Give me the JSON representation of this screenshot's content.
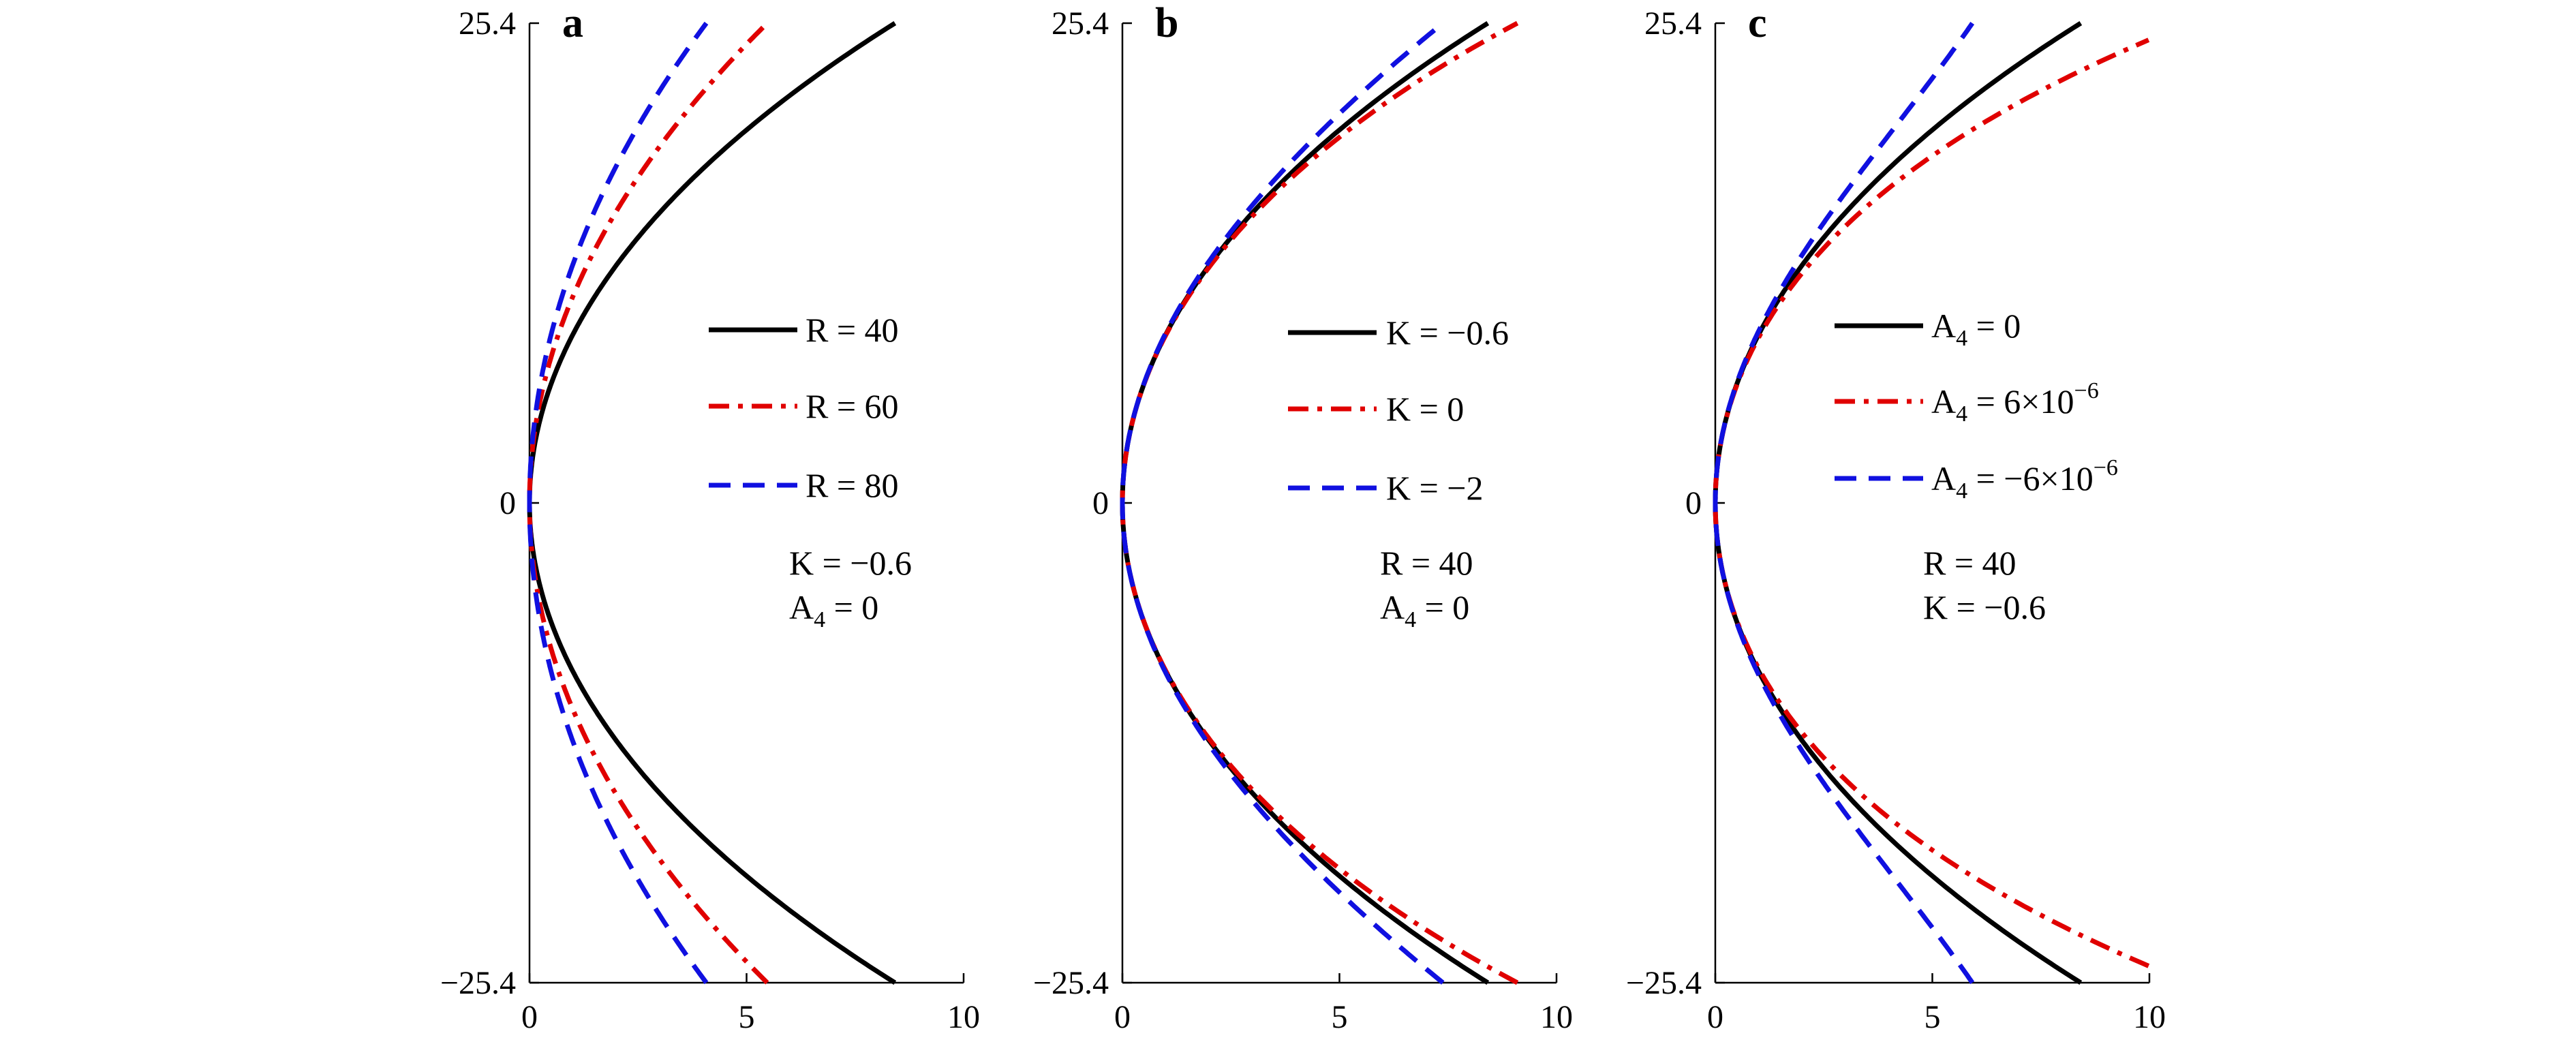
{
  "chart_data": [
    {
      "panel": "a",
      "type": "line",
      "xlim": [
        0,
        10
      ],
      "ylim": [
        -25.4,
        25.4
      ],
      "x_ticks": [
        "0",
        "5",
        "10"
      ],
      "y_ticks": [
        "25.4",
        "0",
        "−25.4"
      ],
      "series": [
        {
          "name": "R = 40",
          "color": "#000000",
          "style": "solid",
          "R": 40,
          "K": -0.6,
          "A4": 0
        },
        {
          "name": "R = 60",
          "color": "#e00000",
          "style": "dashdot",
          "R": 60,
          "K": -0.6,
          "A4": 0
        },
        {
          "name": "R = 80",
          "color": "#1010e0",
          "style": "dashed",
          "R": 80,
          "K": -0.6,
          "A4": 0
        }
      ],
      "params": [
        "K = −0.6",
        "A4 = 0"
      ]
    },
    {
      "panel": "b",
      "type": "line",
      "xlim": [
        0,
        10
      ],
      "ylim": [
        -25.4,
        25.4
      ],
      "x_ticks": [
        "0",
        "5",
        "10"
      ],
      "y_ticks": [
        "25.4",
        "0",
        "−25.4"
      ],
      "series": [
        {
          "name": "K = −0.6",
          "color": "#000000",
          "style": "solid",
          "R": 40,
          "K": -0.6,
          "A4": 0
        },
        {
          "name": "K = 0",
          "color": "#e00000",
          "style": "dashdot",
          "R": 40,
          "K": 0,
          "A4": 0
        },
        {
          "name": "K = −2",
          "color": "#1010e0",
          "style": "dashed",
          "R": 40,
          "K": -2,
          "A4": 0
        }
      ],
      "params": [
        "R = 40",
        "A4 = 0"
      ]
    },
    {
      "panel": "c",
      "type": "line",
      "xlim": [
        0,
        10
      ],
      "ylim": [
        -25.4,
        25.4
      ],
      "x_ticks": [
        "0",
        "5",
        "10"
      ],
      "y_ticks": [
        "25.4",
        "0",
        "−25.4"
      ],
      "series": [
        {
          "name": "A4 = 0",
          "color": "#000000",
          "style": "solid",
          "R": 40,
          "K": -0.6,
          "A4": 0
        },
        {
          "name": "A4 = 6×10−6",
          "color": "#e00000",
          "style": "dashdot",
          "R": 40,
          "K": -0.6,
          "A4": 6e-06
        },
        {
          "name": "A4 = −6×10−6",
          "color": "#1010e0",
          "style": "dashed",
          "R": 40,
          "K": -0.6,
          "A4": -6e-06
        }
      ],
      "params": [
        "R = 40",
        "K = −0.6"
      ]
    }
  ]
}
